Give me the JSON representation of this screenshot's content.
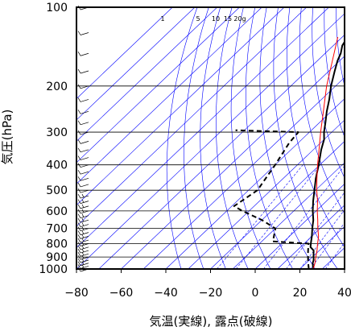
{
  "chart_data": {
    "type": "line",
    "subtype": "skew-T log-P sounding",
    "xlabel": "気温(実線), 露点(破線)",
    "ylabel": "気圧(hPa)",
    "xlim": [
      -80,
      40
    ],
    "ylim": [
      1000,
      100
    ],
    "y_scale": "log",
    "x_ticks": [
      -80,
      -60,
      -40,
      -20,
      0,
      20,
      40
    ],
    "x_tick_labels": [
      "−80",
      "−60",
      "−40",
      "−20",
      "0",
      "20",
      "40"
    ],
    "y_ticks": [
      100,
      200,
      300,
      400,
      500,
      600,
      700,
      800,
      900,
      1000
    ],
    "y_tick_labels": [
      "100",
      "200",
      "300",
      "400",
      "500",
      "600",
      "700",
      "800",
      "900",
      "1000"
    ],
    "grid": true,
    "mixing_ratio_labels": [
      "1",
      "5",
      "10",
      "15",
      "20g"
    ],
    "series": [
      {
        "role": "temperature",
        "style": "solid",
        "color": "#000000",
        "points": [
          {
            "p": 1000,
            "t": 26
          },
          {
            "p": 975,
            "t": 24.5
          },
          {
            "p": 950,
            "t": 23
          },
          {
            "p": 925,
            "t": 22
          },
          {
            "p": 900,
            "t": 20.5
          },
          {
            "p": 875,
            "t": 19
          },
          {
            "p": 850,
            "t": 17.5
          },
          {
            "p": 825,
            "t": 14.5
          },
          {
            "p": 800,
            "t": 13
          },
          {
            "p": 775,
            "t": 11.5
          },
          {
            "p": 750,
            "t": 10
          },
          {
            "p": 700,
            "t": 6.5
          },
          {
            "p": 650,
            "t": 3
          },
          {
            "p": 600,
            "t": -1.5
          },
          {
            "p": 550,
            "t": -6
          },
          {
            "p": 500,
            "t": -10.5
          },
          {
            "p": 450,
            "t": -15.5
          },
          {
            "p": 400,
            "t": -20.5
          },
          {
            "p": 350,
            "t": -26.5
          },
          {
            "p": 320,
            "t": -30
          },
          {
            "p": 300,
            "t": -33.5
          },
          {
            "p": 275,
            "t": -37.5
          },
          {
            "p": 250,
            "t": -42
          },
          {
            "p": 225,
            "t": -46.5
          },
          {
            "p": 200,
            "t": -52
          },
          {
            "p": 175,
            "t": -57.5
          },
          {
            "p": 160,
            "t": -61
          },
          {
            "p": 150,
            "t": -63
          },
          {
            "p": 140,
            "t": -66
          },
          {
            "p": 125,
            "t": -68.5
          },
          {
            "p": 110,
            "t": -71.5
          },
          {
            "p": 100,
            "t": -73
          }
        ]
      },
      {
        "role": "dewpoint",
        "style": "dashed",
        "color": "#000000",
        "points": [
          {
            "p": 1000,
            "t": 24
          },
          {
            "p": 975,
            "t": 22.5
          },
          {
            "p": 950,
            "t": 21
          },
          {
            "p": 925,
            "t": 19.5
          },
          {
            "p": 900,
            "t": 18
          },
          {
            "p": 875,
            "t": 16.5
          },
          {
            "p": 850,
            "t": 15
          },
          {
            "p": 825,
            "t": 13.5
          },
          {
            "p": 800,
            "t": 12
          },
          {
            "p": 785,
            "t": -5
          },
          {
            "p": 700,
            "t": -10
          },
          {
            "p": 650,
            "t": -20
          },
          {
            "p": 600,
            "t": -33
          },
          {
            "p": 575,
            "t": -39
          },
          {
            "p": 500,
            "t": -36
          },
          {
            "p": 400,
            "t": -40
          },
          {
            "p": 330,
            "t": -44
          },
          {
            "p": 300,
            "t": -45
          },
          {
            "p": 295,
            "t": -74
          }
        ]
      },
      {
        "role": "parcel",
        "style": "solid",
        "color": "#ff0000",
        "points": [
          {
            "p": 1000,
            "t": 26
          },
          {
            "p": 950,
            "t": 24
          },
          {
            "p": 900,
            "t": 21.5
          },
          {
            "p": 850,
            "t": 19
          },
          {
            "p": 800,
            "t": 16
          },
          {
            "p": 750,
            "t": 13
          },
          {
            "p": 700,
            "t": 9
          },
          {
            "p": 650,
            "t": 5
          },
          {
            "p": 600,
            "t": 0.5
          },
          {
            "p": 550,
            "t": -4
          },
          {
            "p": 500,
            "t": -9.5
          },
          {
            "p": 450,
            "t": -15
          },
          {
            "p": 400,
            "t": -21
          },
          {
            "p": 350,
            "t": -27.5
          },
          {
            "p": 300,
            "t": -35
          },
          {
            "p": 250,
            "t": -43.5
          },
          {
            "p": 200,
            "t": -54
          },
          {
            "p": 150,
            "t": -66
          },
          {
            "p": 130,
            "t": -72
          }
        ]
      }
    ],
    "wind_barbs_shown": true,
    "colors": {
      "temperature": "#000000",
      "dewpoint": "#000000",
      "parcel": "#ff0000",
      "background_lines": "#0000ff",
      "grid": "#000000"
    }
  }
}
